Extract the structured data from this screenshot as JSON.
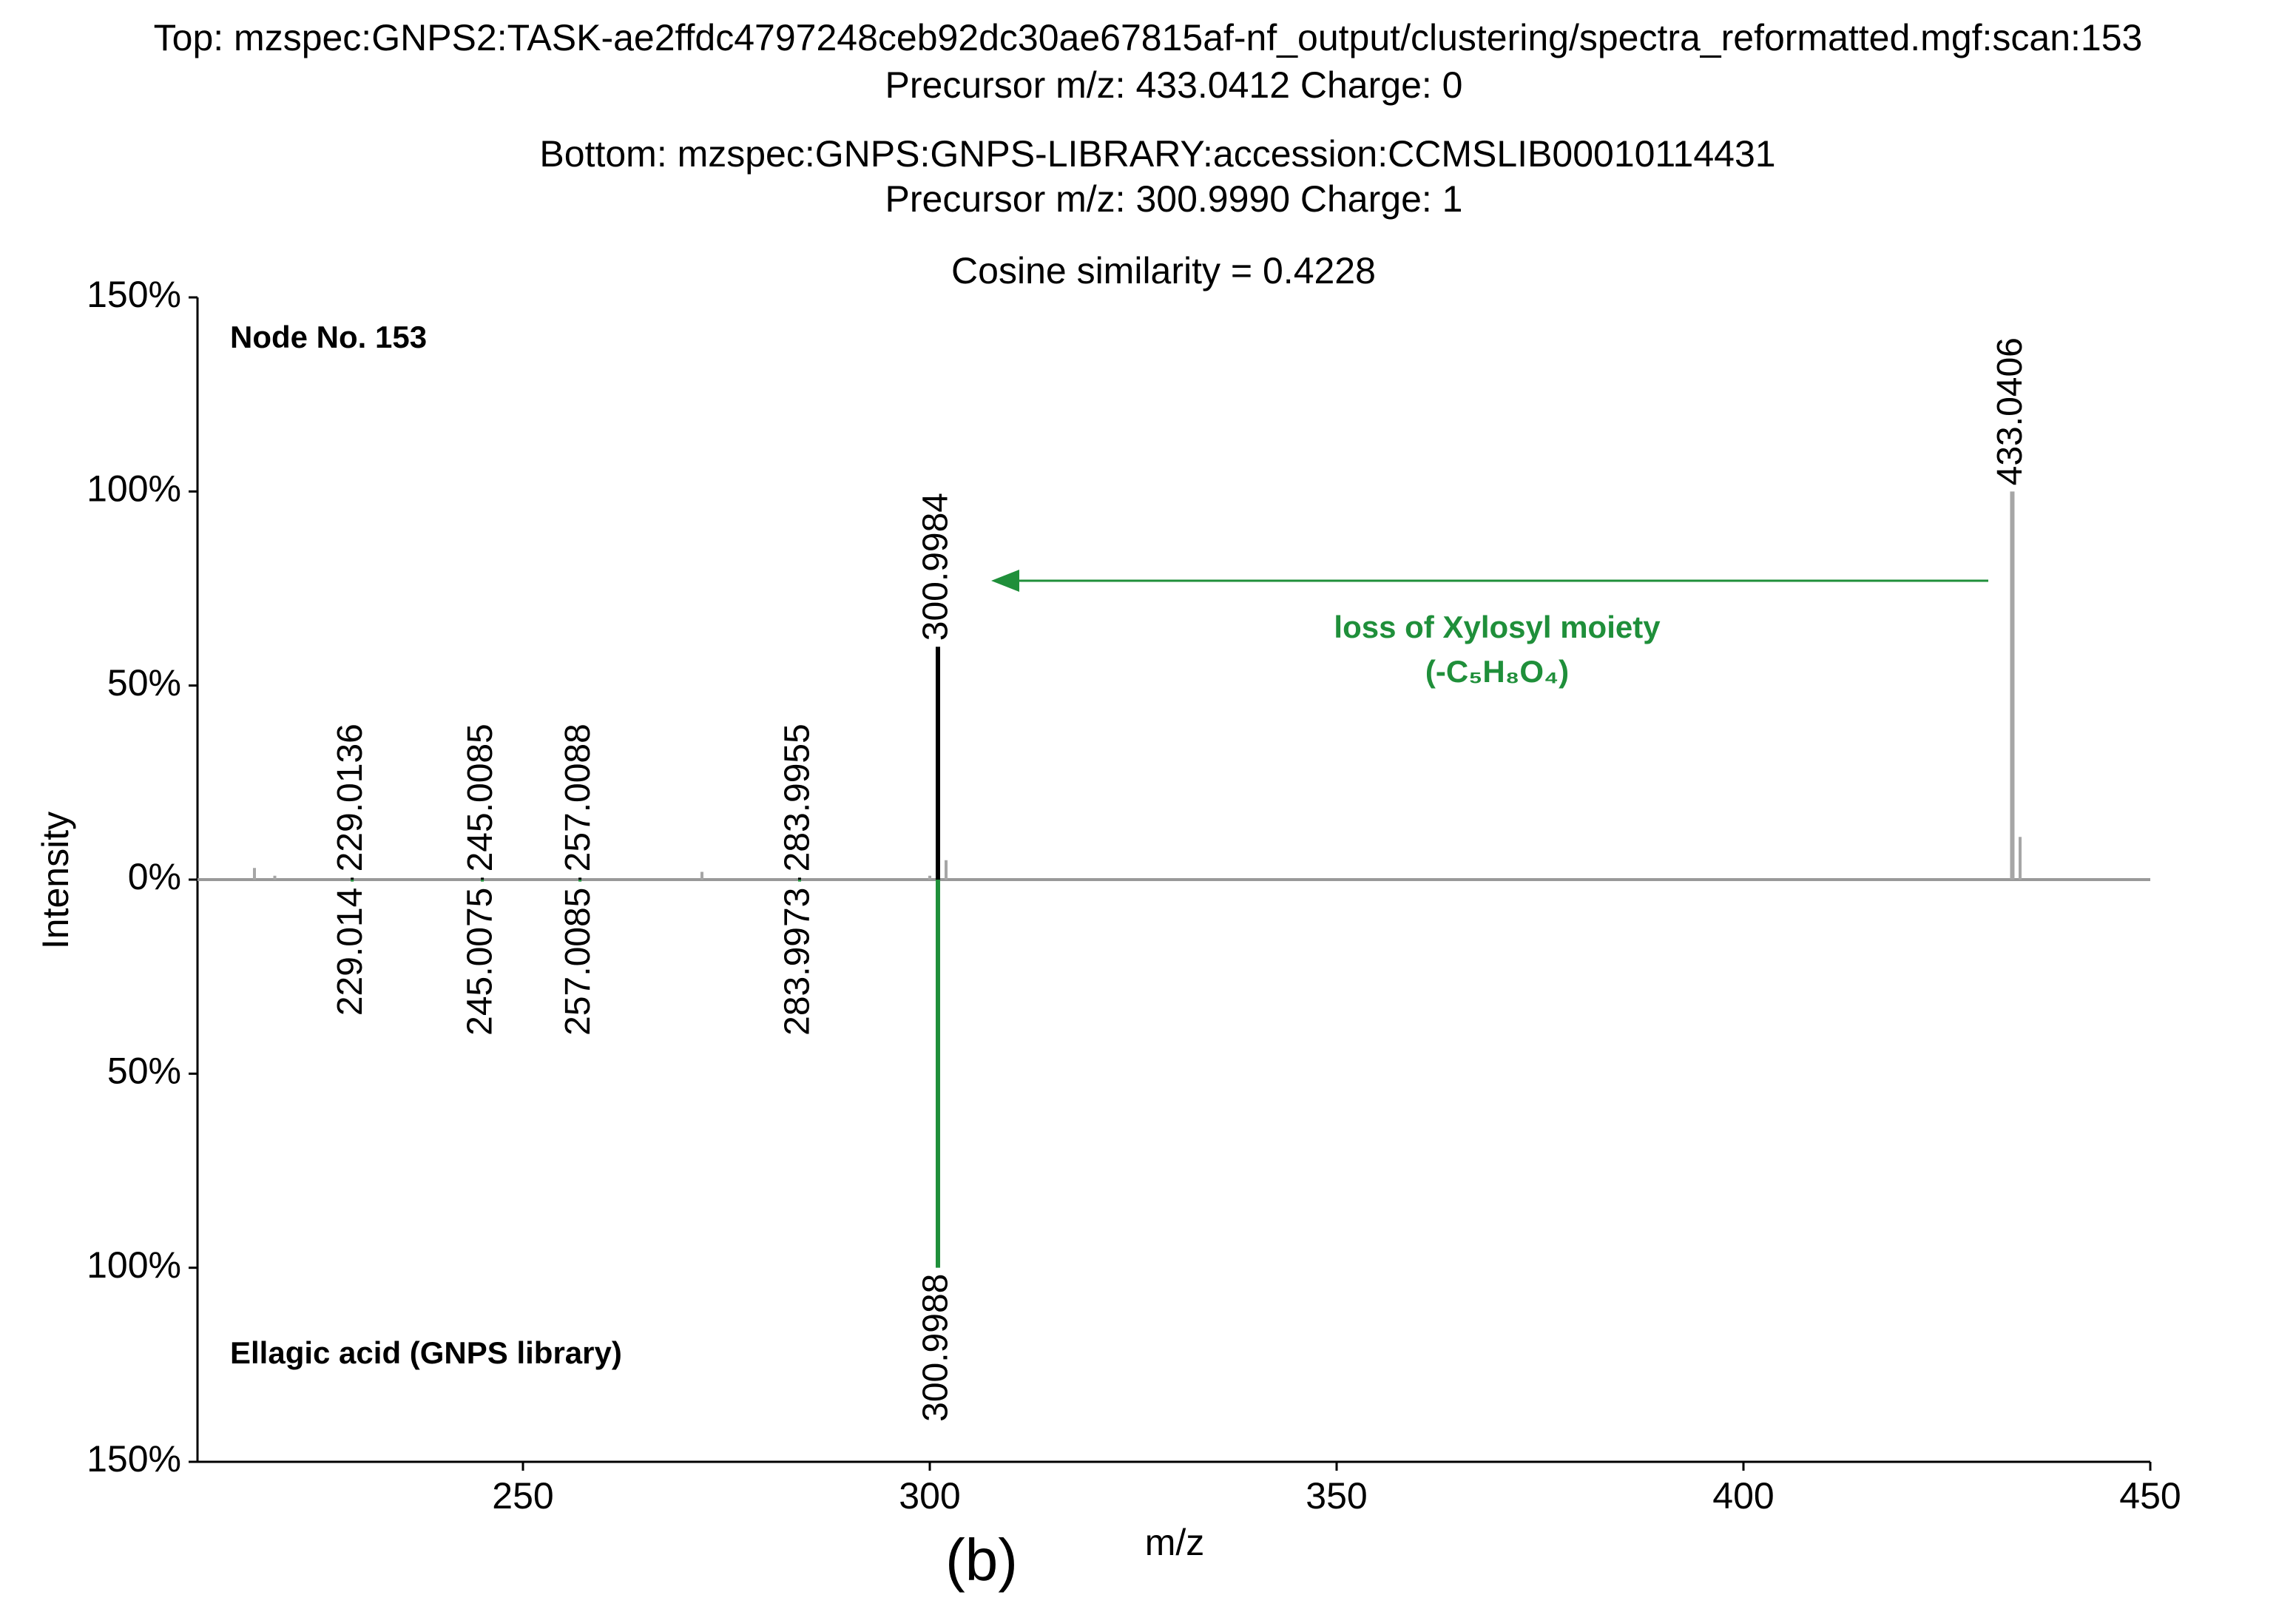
{
  "chart_data": {
    "type": "mirror_spectrum",
    "title_lines": [
      "Top: mzspec:GNPS2:TASK-ae2ffdc4797248ceb92dc30ae67815af-nf_output/clustering/spectra_reformatted.mgf:scan:153",
      "Precursor m/z: 433.0412 Charge: 0",
      "Bottom: mzspec:GNPS:GNPS-LIBRARY:accession:CCMSLIB00010114431",
      "Precursor m/z: 300.9990 Charge: 1",
      "Cosine similarity = 0.4228"
    ],
    "x_label": "m/z",
    "y_label": "Intensity",
    "panel_label": "(b)",
    "annotations": [
      "Node No. 153",
      "Ellagic acid (GNPS library)",
      "loss of Xylosyl moiety",
      "(-C₅H₈O₄)"
    ],
    "xlim": [
      210,
      450
    ],
    "xticks": [
      250,
      300,
      350,
      400,
      450
    ],
    "ylim": [
      -150,
      150
    ],
    "yticks": [
      {
        "value": 150,
        "label": "150%"
      },
      {
        "value": 100,
        "label": "100%"
      },
      {
        "value": 50,
        "label": "50%"
      },
      {
        "value": 0,
        "label": "0%"
      },
      {
        "value": -50,
        "label": "50%"
      },
      {
        "value": -100,
        "label": "100%"
      },
      {
        "value": -150,
        "label": "150%"
      }
    ],
    "series": [
      {
        "color": "#000000",
        "labeled": true,
        "x": [
          229.0136,
          245.0085,
          257.0088,
          283.9955,
          300.9984
        ],
        "values": [
          0.5,
          0.5,
          0.5,
          0.5,
          60
        ]
      },
      {
        "color": "#a6a6a6",
        "labeled": true,
        "x": [
          433.0406
        ],
        "values": [
          100
        ]
      },
      {
        "color": "#a6a6a6",
        "labeled": false,
        "x": [
          217.0,
          219.5,
          272.0,
          300.0,
          302.0,
          434.0
        ],
        "values": [
          3,
          1,
          2,
          1,
          5,
          11
        ]
      },
      {
        "color": "#1f8f3a",
        "labeled": true,
        "x": [
          229.014,
          245.0075,
          257.0085,
          283.9973,
          300.9988
        ],
        "values": [
          -0.5,
          -0.5,
          -0.5,
          -0.5,
          -100
        ]
      }
    ]
  }
}
